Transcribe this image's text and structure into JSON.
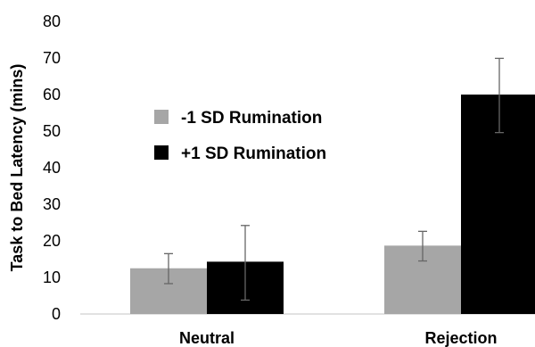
{
  "chart_data": {
    "type": "bar",
    "title": "",
    "xlabel": "",
    "ylabel": "Task to Bed Latency (mins)",
    "ylim": [
      0,
      80
    ],
    "yticks": [
      0,
      10,
      20,
      30,
      40,
      50,
      60,
      70,
      80
    ],
    "categories": [
      "Neutral",
      "Rejection"
    ],
    "grid": false,
    "legend_position": "middle-left",
    "series": [
      {
        "name": "-1 SD Rumination",
        "color": "#a6a6a6",
        "values": [
          12.5,
          18.7
        ],
        "error_low": [
          8.3,
          14.5
        ],
        "error_high": [
          16.5,
          22.6
        ]
      },
      {
        "name": "+1 SD Rumination",
        "color": "#000000",
        "values": [
          14.3,
          60
        ],
        "error_low": [
          3.8,
          49.6
        ],
        "error_high": [
          24.2,
          69.9
        ]
      }
    ]
  }
}
